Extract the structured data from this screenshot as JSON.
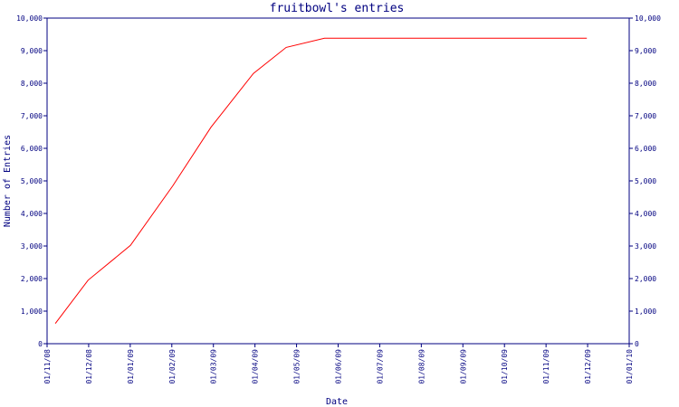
{
  "chart_data": {
    "type": "line",
    "title": "fruitbowl's entries",
    "xlabel": "Date",
    "ylabel": "Number of Entries",
    "x_ticks": [
      "01/11/08",
      "01/12/08",
      "01/01/09",
      "01/02/09",
      "01/03/09",
      "01/04/09",
      "01/05/09",
      "01/06/09",
      "01/07/09",
      "01/08/09",
      "01/09/09",
      "01/10/09",
      "01/11/09",
      "01/12/09",
      "01/01/10"
    ],
    "y_ticks": [
      "0",
      "1,000",
      "2,000",
      "3,000",
      "4,000",
      "5,000",
      "6,000",
      "7,000",
      "8,000",
      "9,000",
      "10,000"
    ],
    "ylim": [
      0,
      10000
    ],
    "xlim": [
      "2008-11-01",
      "2010-01-01"
    ],
    "series": [
      {
        "color": "#ff0000",
        "points": [
          {
            "x": "2008-11-07",
            "y": 620
          },
          {
            "x": "2008-12-01",
            "y": 1950
          },
          {
            "x": "2009-01-01",
            "y": 3020
          },
          {
            "x": "2009-02-01",
            "y": 4850
          },
          {
            "x": "2009-03-01",
            "y": 6650
          },
          {
            "x": "2009-04-01",
            "y": 8300
          },
          {
            "x": "2009-04-25",
            "y": 9100
          },
          {
            "x": "2009-05-23",
            "y": 9380
          },
          {
            "x": "2009-12-01",
            "y": 9380
          }
        ]
      }
    ],
    "colors": {
      "axis": "#000080",
      "title": "#000080",
      "line": "#ff0000"
    },
    "grid": false,
    "right_axis_mirror": true
  }
}
